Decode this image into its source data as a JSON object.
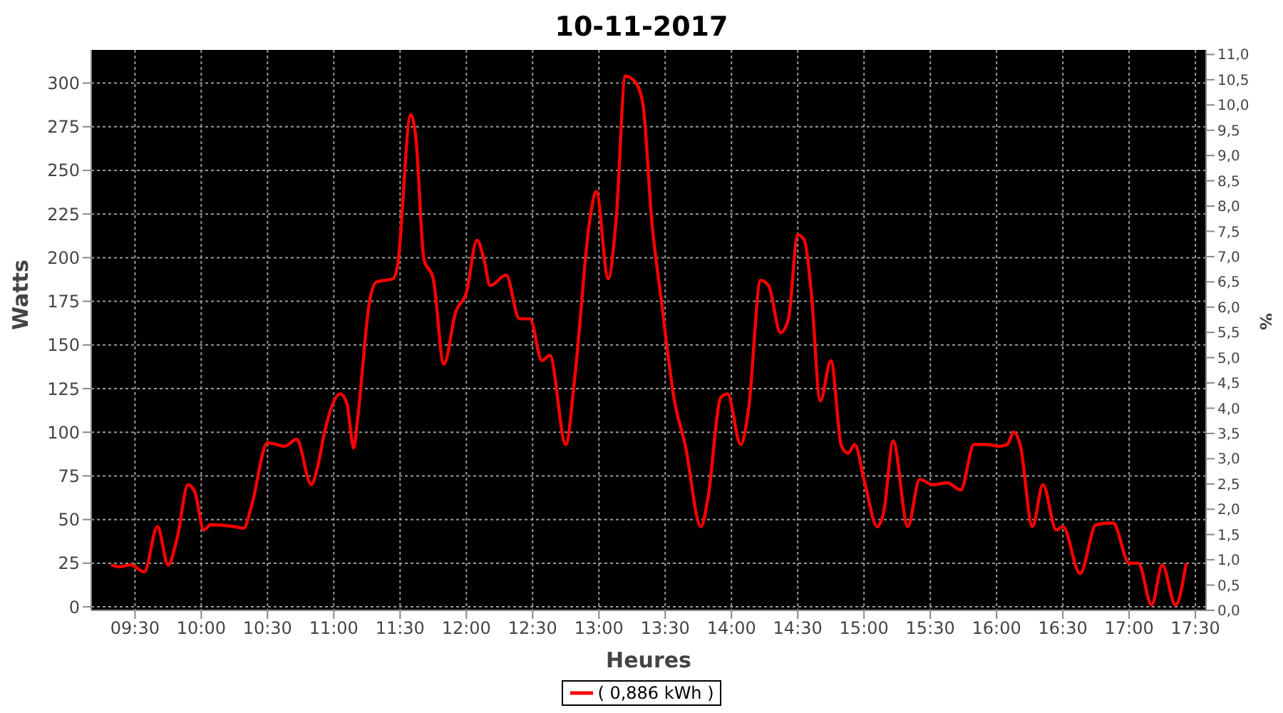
{
  "chart_data": {
    "type": "line",
    "title": "10-11-2017",
    "xlabel": "Heures",
    "ylabel": "Watts",
    "y2label": "%",
    "x": [
      9.32,
      9.38,
      9.47,
      9.57,
      9.67,
      9.75,
      9.82,
      9.9,
      9.95,
      10.02,
      10.07,
      10.25,
      10.32,
      10.38,
      10.5,
      10.63,
      10.72,
      10.83,
      10.88,
      10.93,
      11.05,
      11.1,
      11.15,
      11.18,
      11.27,
      11.32,
      11.45,
      11.48,
      11.58,
      11.62,
      11.68,
      11.75,
      11.83,
      11.92,
      12.0,
      12.08,
      12.13,
      12.18,
      12.3,
      12.4,
      12.48,
      12.57,
      12.63,
      12.75,
      12.82,
      12.93,
      12.98,
      13.07,
      13.13,
      13.2,
      13.27,
      13.33,
      13.4,
      13.47,
      13.57,
      13.65,
      13.77,
      13.82,
      13.92,
      13.97,
      14.07,
      14.13,
      14.22,
      14.28,
      14.37,
      14.43,
      14.5,
      14.55,
      14.6,
      14.67,
      14.75,
      14.83,
      14.88,
      14.93,
      15.0,
      15.1,
      15.15,
      15.22,
      15.33,
      15.42,
      15.52,
      15.63,
      15.73,
      15.83,
      15.92,
      16.02,
      16.08,
      16.13,
      16.18,
      16.27,
      16.35,
      16.45,
      16.5,
      16.63,
      16.75,
      16.88,
      17.0,
      17.07,
      17.17,
      17.25,
      17.35,
      17.43
    ],
    "series": [
      {
        "name": "( 0,886 kWh )",
        "color": "#ff0000",
        "values": [
          24,
          23,
          24,
          20,
          46,
          24,
          40,
          70,
          66,
          44,
          47,
          46,
          45,
          58,
          94,
          92,
          96,
          70,
          81,
          100,
          122,
          116,
          91,
          108,
          175,
          186,
          188,
          195,
          282,
          268,
          199,
          188,
          139,
          169,
          180,
          210,
          200,
          184,
          190,
          165,
          165,
          141,
          144,
          93,
          133,
          221,
          238,
          188,
          222,
          304,
          301,
          289,
          220,
          176,
          118,
          93,
          46,
          61,
          120,
          122,
          93,
          114,
          187,
          184,
          157,
          165,
          213,
          210,
          182,
          118,
          141,
          92,
          88,
          93,
          73,
          46,
          55,
          95,
          46,
          73,
          70,
          71,
          67,
          93,
          93,
          92,
          93,
          100,
          92,
          46,
          70,
          44,
          46,
          19,
          47,
          48,
          25,
          25,
          1,
          24,
          1,
          25
        ]
      }
    ],
    "xlim": [
      9.17,
      17.58
    ],
    "xticks": [
      {
        "value": 9.5,
        "label": "09:30"
      },
      {
        "value": 10,
        "label": "10:00"
      },
      {
        "value": 10.5,
        "label": "10:30"
      },
      {
        "value": 11,
        "label": "11:00"
      },
      {
        "value": 11.5,
        "label": "11:30"
      },
      {
        "value": 12,
        "label": "12:00"
      },
      {
        "value": 12.5,
        "label": "12:30"
      },
      {
        "value": 13,
        "label": "13:00"
      },
      {
        "value": 13.5,
        "label": "13:30"
      },
      {
        "value": 14,
        "label": "14:00"
      },
      {
        "value": 14.5,
        "label": "14:30"
      },
      {
        "value": 15,
        "label": "15:00"
      },
      {
        "value": 15.5,
        "label": "15:30"
      },
      {
        "value": 16,
        "label": "16:00"
      },
      {
        "value": 16.5,
        "label": "16:30"
      },
      {
        "value": 17,
        "label": "17:00"
      },
      {
        "value": 17.5,
        "label": "17:30"
      }
    ],
    "ylim": [
      -2,
      319
    ],
    "yticks": [
      0,
      25,
      50,
      75,
      100,
      125,
      150,
      175,
      200,
      225,
      250,
      275,
      300
    ],
    "y2lim": [
      0,
      11.09
    ],
    "y2ticks": [
      {
        "value": 0,
        "label": "0,0"
      },
      {
        "value": 0.5,
        "label": "0,5"
      },
      {
        "value": 1,
        "label": "1,0"
      },
      {
        "value": 1.5,
        "label": "1,5"
      },
      {
        "value": 2,
        "label": "2,0"
      },
      {
        "value": 2.5,
        "label": "2,5"
      },
      {
        "value": 3,
        "label": "3,0"
      },
      {
        "value": 3.5,
        "label": "3,5"
      },
      {
        "value": 4,
        "label": "4,0"
      },
      {
        "value": 4.5,
        "label": "4,5"
      },
      {
        "value": 5,
        "label": "5,0"
      },
      {
        "value": 5.5,
        "label": "5,5"
      },
      {
        "value": 6,
        "label": "6,0"
      },
      {
        "value": 6.5,
        "label": "6,5"
      },
      {
        "value": 7,
        "label": "7,0"
      },
      {
        "value": 7.5,
        "label": "7,5"
      },
      {
        "value": 8,
        "label": "8,0"
      },
      {
        "value": 8.5,
        "label": "8,5"
      },
      {
        "value": 9,
        "label": "9,0"
      },
      {
        "value": 9.5,
        "label": "9,5"
      },
      {
        "value": 10,
        "label": "10,0"
      },
      {
        "value": 10.5,
        "label": "10,5"
      },
      {
        "value": 11,
        "label": "11,0"
      }
    ],
    "grid": true,
    "legend": "bottom",
    "marker": "none",
    "line_style": "solid"
  }
}
